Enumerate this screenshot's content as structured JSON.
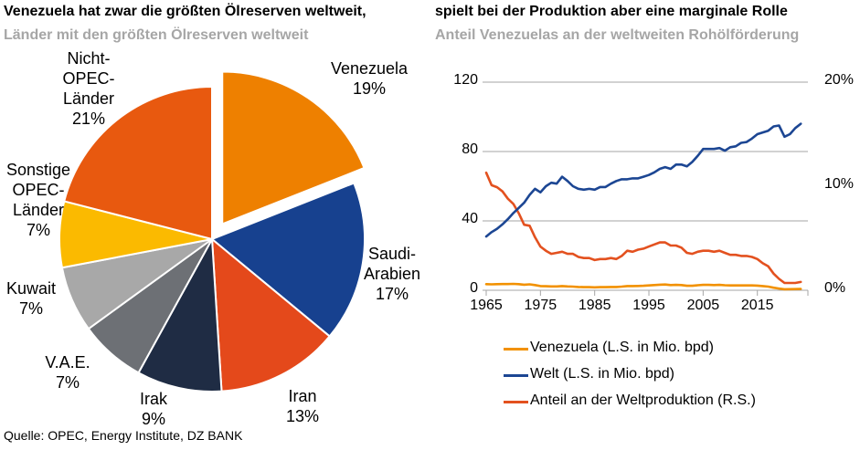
{
  "page": {
    "background": "#FFFFFF"
  },
  "left_panel": {
    "title": "Venezuela hat zwar die größten Ölreserven weltweit,",
    "subtitle": "Länder mit den größten Ölreserven weltweit"
  },
  "right_panel": {
    "title": "spielt bei der Produktion aber eine marginale Rolle",
    "subtitle": "Anteil Venezuelas an der weltweiten Rohölförderung"
  },
  "source": "Quelle: OPEC, Energy Institute, DZ BANK",
  "styles": {
    "title_color": "#000000",
    "subtitle_color": "#A6A6A6",
    "axis_color": "#A6A6A6",
    "gridline_color": "#A6A6A6"
  },
  "chart_data": [
    {
      "type": "pie",
      "title": "Länder mit den größten Ölreserven weltweit",
      "unit": "percent of world oil reserves",
      "start": "12-o'clock, clockwise",
      "slices": [
        {
          "key": "venezuela",
          "label": "Venezuela",
          "pct": "19%",
          "value": 19,
          "color": "#EE8000",
          "exploded": true,
          "label_lines": [
            "Venezuela",
            "19%"
          ]
        },
        {
          "key": "saudi",
          "label": "Saudi-Arabien",
          "pct": "17%",
          "value": 17,
          "color": "#17418F",
          "exploded": false,
          "label_lines": [
            "Saudi-",
            "Arabien",
            "17%"
          ]
        },
        {
          "key": "iran",
          "label": "Iran",
          "pct": "13%",
          "value": 13,
          "color": "#E4491B",
          "exploded": false,
          "label_lines": [
            "Iran",
            "13%"
          ]
        },
        {
          "key": "irak",
          "label": "Irak",
          "pct": "9%",
          "value": 9,
          "color": "#1F2C44",
          "exploded": false,
          "label_lines": [
            "Irak",
            "9%"
          ]
        },
        {
          "key": "vae",
          "label": "V.A.E.",
          "pct": "7%",
          "value": 7,
          "color": "#6D7075",
          "exploded": false,
          "label_lines": [
            "V.A.E.",
            "7%"
          ]
        },
        {
          "key": "kuwait",
          "label": "Kuwait",
          "pct": "7%",
          "value": 7,
          "color": "#A8A8A8",
          "exploded": false,
          "label_lines": [
            "Kuwait",
            "7%"
          ]
        },
        {
          "key": "sonstige",
          "label": "Sonstige OPEC-Länder",
          "pct": "7%",
          "value": 7,
          "color": "#FBBA00",
          "exploded": false,
          "label_lines": [
            "Sonstige",
            "OPEC-",
            "Länder",
            "7%"
          ]
        },
        {
          "key": "nicht",
          "label": "Nicht-OPEC-Länder",
          "pct": "21%",
          "value": 21,
          "color": "#E8590F",
          "exploded": false,
          "label_lines": [
            "Nicht-",
            "OPEC-",
            "Länder",
            "21%"
          ]
        }
      ]
    },
    {
      "type": "line",
      "title": "Anteil Venezuelas an der weltweiten Rohölförderung",
      "x_start": 1965,
      "x_end": 2023,
      "x_tick_labels": [
        "1965",
        "1975",
        "1985",
        "1995",
        "2005",
        "2015"
      ],
      "left_axis": {
        "tick_labels": [
          "0",
          "40",
          "80",
          "120"
        ],
        "range": [
          0,
          120
        ],
        "unit": "Mio. bpd"
      },
      "right_axis": {
        "tick_labels": [
          "0%",
          "10%",
          "20%"
        ],
        "range": [
          0,
          20
        ],
        "unit": "%"
      },
      "grid": "horizontal",
      "legend_position": "bottom",
      "series": [
        {
          "name": "Venezuela (L.S. in Mio. bpd)",
          "axis": "left",
          "color": "#F29100",
          "values": [
            3.5,
            3.4,
            3.5,
            3.6,
            3.6,
            3.7,
            3.5,
            3.2,
            3.4,
            3.0,
            2.4,
            2.3,
            2.2,
            2.2,
            2.4,
            2.2,
            2.1,
            1.9,
            1.8,
            1.8,
            1.7,
            1.8,
            1.8,
            1.9,
            1.9,
            2.1,
            2.4,
            2.4,
            2.5,
            2.6,
            2.8,
            3.0,
            3.2,
            3.3,
            3.0,
            3.1,
            3.0,
            2.6,
            2.6,
            2.9,
            3.1,
            3.1,
            3.0,
            3.1,
            2.9,
            2.8,
            2.8,
            2.8,
            2.8,
            2.8,
            2.7,
            2.4,
            2.1,
            1.5,
            1.0,
            0.6,
            0.65,
            0.7,
            0.8
          ]
        },
        {
          "name": "Welt (L.S. in Mio. bpd)",
          "axis": "left",
          "color": "#1C4693",
          "values": [
            31,
            33.5,
            35.5,
            38,
            41,
            44.5,
            47.5,
            50.5,
            55,
            58.5,
            56.5,
            60,
            62,
            61.5,
            65.5,
            63,
            60,
            58.5,
            58,
            58.5,
            58,
            59.5,
            59.5,
            61.5,
            63,
            64,
            64,
            64.5,
            64.5,
            65.5,
            66.5,
            68,
            70,
            71,
            70,
            72.5,
            72.5,
            71.5,
            74,
            77.5,
            81.5,
            81.5,
            81.5,
            82,
            80.5,
            82.5,
            83,
            85,
            85.5,
            87.5,
            90,
            91,
            92,
            94.5,
            95,
            88.5,
            90,
            93.5,
            96
          ]
        },
        {
          "name": "Anteil an der Weltproduktion (R.S.)",
          "axis": "right",
          "color": "#E3511F",
          "values": [
            11.3,
            10.1,
            9.9,
            9.5,
            8.8,
            8.3,
            7.4,
            6.3,
            6.2,
            5.1,
            4.2,
            3.8,
            3.5,
            3.6,
            3.7,
            3.5,
            3.5,
            3.2,
            3.1,
            3.1,
            2.9,
            3.0,
            3.0,
            3.1,
            3.0,
            3.3,
            3.8,
            3.7,
            3.9,
            4.0,
            4.2,
            4.4,
            4.6,
            4.6,
            4.3,
            4.3,
            4.1,
            3.6,
            3.5,
            3.7,
            3.8,
            3.8,
            3.7,
            3.8,
            3.6,
            3.4,
            3.4,
            3.3,
            3.3,
            3.2,
            3.0,
            2.6,
            2.3,
            1.6,
            1.1,
            0.7,
            0.7,
            0.7,
            0.8
          ]
        }
      ]
    }
  ]
}
